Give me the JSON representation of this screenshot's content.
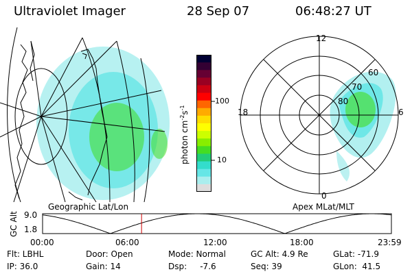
{
  "header": {
    "instrument": "Ultraviolet Imager",
    "date": "28 Sep 07",
    "time": "06:48:27 UT"
  },
  "colors": {
    "background": "#ffffff",
    "line": "#000000",
    "marker": "#cc0000"
  },
  "left_map": {
    "caption": "Geographic Lat/Lon"
  },
  "right_map": {
    "caption": "Apex MLat/MLT",
    "mlt_labels": {
      "top": "12",
      "left": "18",
      "right": "6",
      "bottom": "0"
    },
    "mlat_labels": [
      "60",
      "70",
      "80"
    ]
  },
  "colorbar": {
    "unit_label": "photon cm",
    "unit_sup1": "-2",
    "unit_mid": "s",
    "unit_sup2": "-1",
    "ticks": [
      "100",
      "10"
    ],
    "colors": [
      "#000033",
      "#330033",
      "#660033",
      "#990022",
      "#cc0011",
      "#ff0000",
      "#ff6600",
      "#ffaa00",
      "#ffdd00",
      "#ffff00",
      "#ccff00",
      "#88ee00",
      "#44dd22",
      "#22cc77",
      "#33ddcc",
      "#66e6e6",
      "#aaeeee",
      "#dddddd"
    ]
  },
  "timeline": {
    "ylabel": "GC Alt",
    "ytick": "9.0",
    "ybottom": "1.8",
    "xticks": [
      "00:00",
      "06:00",
      "12:00",
      "18:00",
      "23:59"
    ],
    "current_time_hours": 6.81
  },
  "footer": {
    "flt": "Flt: LBHL",
    "ip": "IP: 36.0",
    "door": "Door: Open",
    "gain": "Gain: 14",
    "mode": "Mode: Normal",
    "dsp": "Dsp:     -7.6",
    "gc_alt": "GC Alt: 4.9 Re",
    "seq": "Seq: 39",
    "glat": "GLat: -71.9",
    "glon": "GLon:  41.5"
  }
}
